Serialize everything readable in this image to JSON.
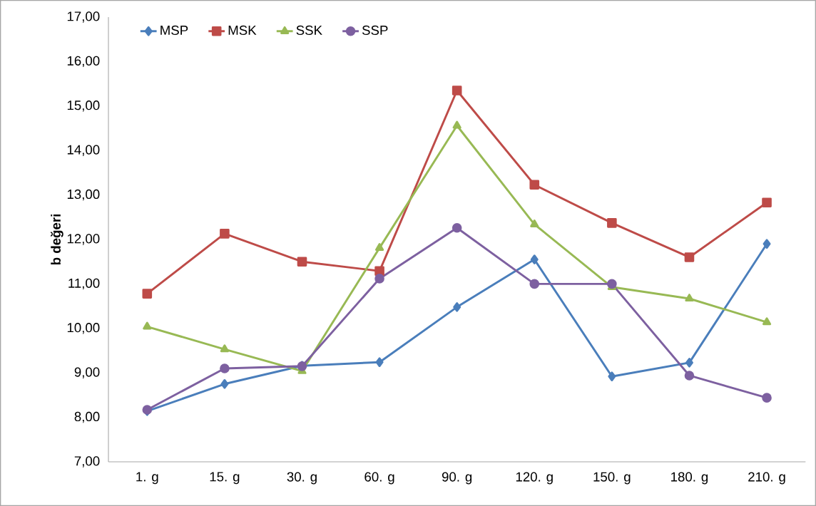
{
  "chart_data": {
    "type": "line",
    "ylabel": "b değeri",
    "categories": [
      "1. g",
      "15. g",
      "30. g",
      "60. g",
      "90. g",
      "120. g",
      "150. g",
      "180. g",
      "210. g"
    ],
    "series": [
      {
        "name": "MSP",
        "color": "#4a7ebb",
        "marker": "diamond",
        "values": [
          8.14,
          8.75,
          9.16,
          9.24,
          10.48,
          11.55,
          8.92,
          9.23,
          11.9
        ]
      },
      {
        "name": "MSK",
        "color": "#be4b48",
        "marker": "square",
        "values": [
          10.78,
          12.13,
          11.5,
          11.29,
          15.35,
          13.23,
          12.37,
          11.6,
          12.83
        ]
      },
      {
        "name": "SSK",
        "color": "#98b954",
        "marker": "triangle",
        "values": [
          10.04,
          9.53,
          9.04,
          11.81,
          14.56,
          12.34,
          10.93,
          10.67,
          10.14
        ]
      },
      {
        "name": "SSP",
        "color": "#7d60a0",
        "marker": "circle",
        "values": [
          8.17,
          9.1,
          9.15,
          11.12,
          12.26,
          11.0,
          11.0,
          8.94,
          8.44
        ]
      }
    ],
    "ylim": [
      7,
      17
    ],
    "yticks": [
      {
        "value": 7,
        "label": "7,00"
      },
      {
        "value": 8,
        "label": "8,00"
      },
      {
        "value": 9,
        "label": "9,00"
      },
      {
        "value": 10,
        "label": "10,00"
      },
      {
        "value": 11,
        "label": "11,00"
      },
      {
        "value": 12,
        "label": "12,00"
      },
      {
        "value": 13,
        "label": "13,00"
      },
      {
        "value": 14,
        "label": "14,00"
      },
      {
        "value": 15,
        "label": "15,00"
      },
      {
        "value": 16,
        "label": "16,00"
      },
      {
        "value": 17,
        "label": "17,00"
      }
    ],
    "legend": "top left",
    "grid": false,
    "line_style": "solid"
  }
}
